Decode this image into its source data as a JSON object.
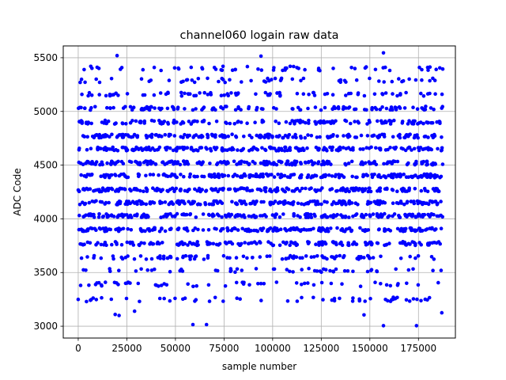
{
  "chart_data": {
    "type": "scatter",
    "title": "channel060 logain raw data",
    "xlabel": "sample number",
    "ylabel": "ADC Code",
    "xlim": [
      -7700,
      194000
    ],
    "ylim": [
      2890,
      5610
    ],
    "x_ticks": [
      0,
      25000,
      50000,
      75000,
      100000,
      125000,
      150000,
      175000
    ],
    "y_ticks": [
      3000,
      3500,
      4000,
      4500,
      5000,
      5500
    ],
    "grid": true,
    "marker_color": "#0000ff",
    "sample_range": [
      0,
      187500
    ],
    "dense_bands": [
      3520,
      3640,
      3770,
      3900,
      4030,
      4150,
      4270,
      4400,
      4520,
      4650,
      4770,
      4900,
      5030,
      5160
    ],
    "band_weights": [
      0.25,
      0.45,
      0.75,
      0.95,
      1,
      1,
      1,
      1,
      1,
      0.95,
      0.85,
      0.7,
      0.55,
      0.4
    ],
    "sparse_bands": [
      3250,
      3390,
      5290,
      5400
    ],
    "outliers": [
      {
        "x": 20000,
        "y": 5520
      },
      {
        "x": 94000,
        "y": 5515
      },
      {
        "x": 157000,
        "y": 5545
      },
      {
        "x": 186000,
        "y": 5405
      },
      {
        "x": 187500,
        "y": 5395
      },
      {
        "x": 59000,
        "y": 3015
      },
      {
        "x": 66000,
        "y": 3015
      },
      {
        "x": 157000,
        "y": 3005
      },
      {
        "x": 174000,
        "y": 3005
      },
      {
        "x": 19000,
        "y": 3110
      },
      {
        "x": 21000,
        "y": 3100
      },
      {
        "x": 29000,
        "y": 3140
      },
      {
        "x": 147000,
        "y": 3105
      },
      {
        "x": 187000,
        "y": 3125
      },
      {
        "x": 0,
        "y": 3250
      },
      {
        "x": 1000,
        "y": 5270
      },
      {
        "x": 109000,
        "y": 5420
      }
    ]
  }
}
